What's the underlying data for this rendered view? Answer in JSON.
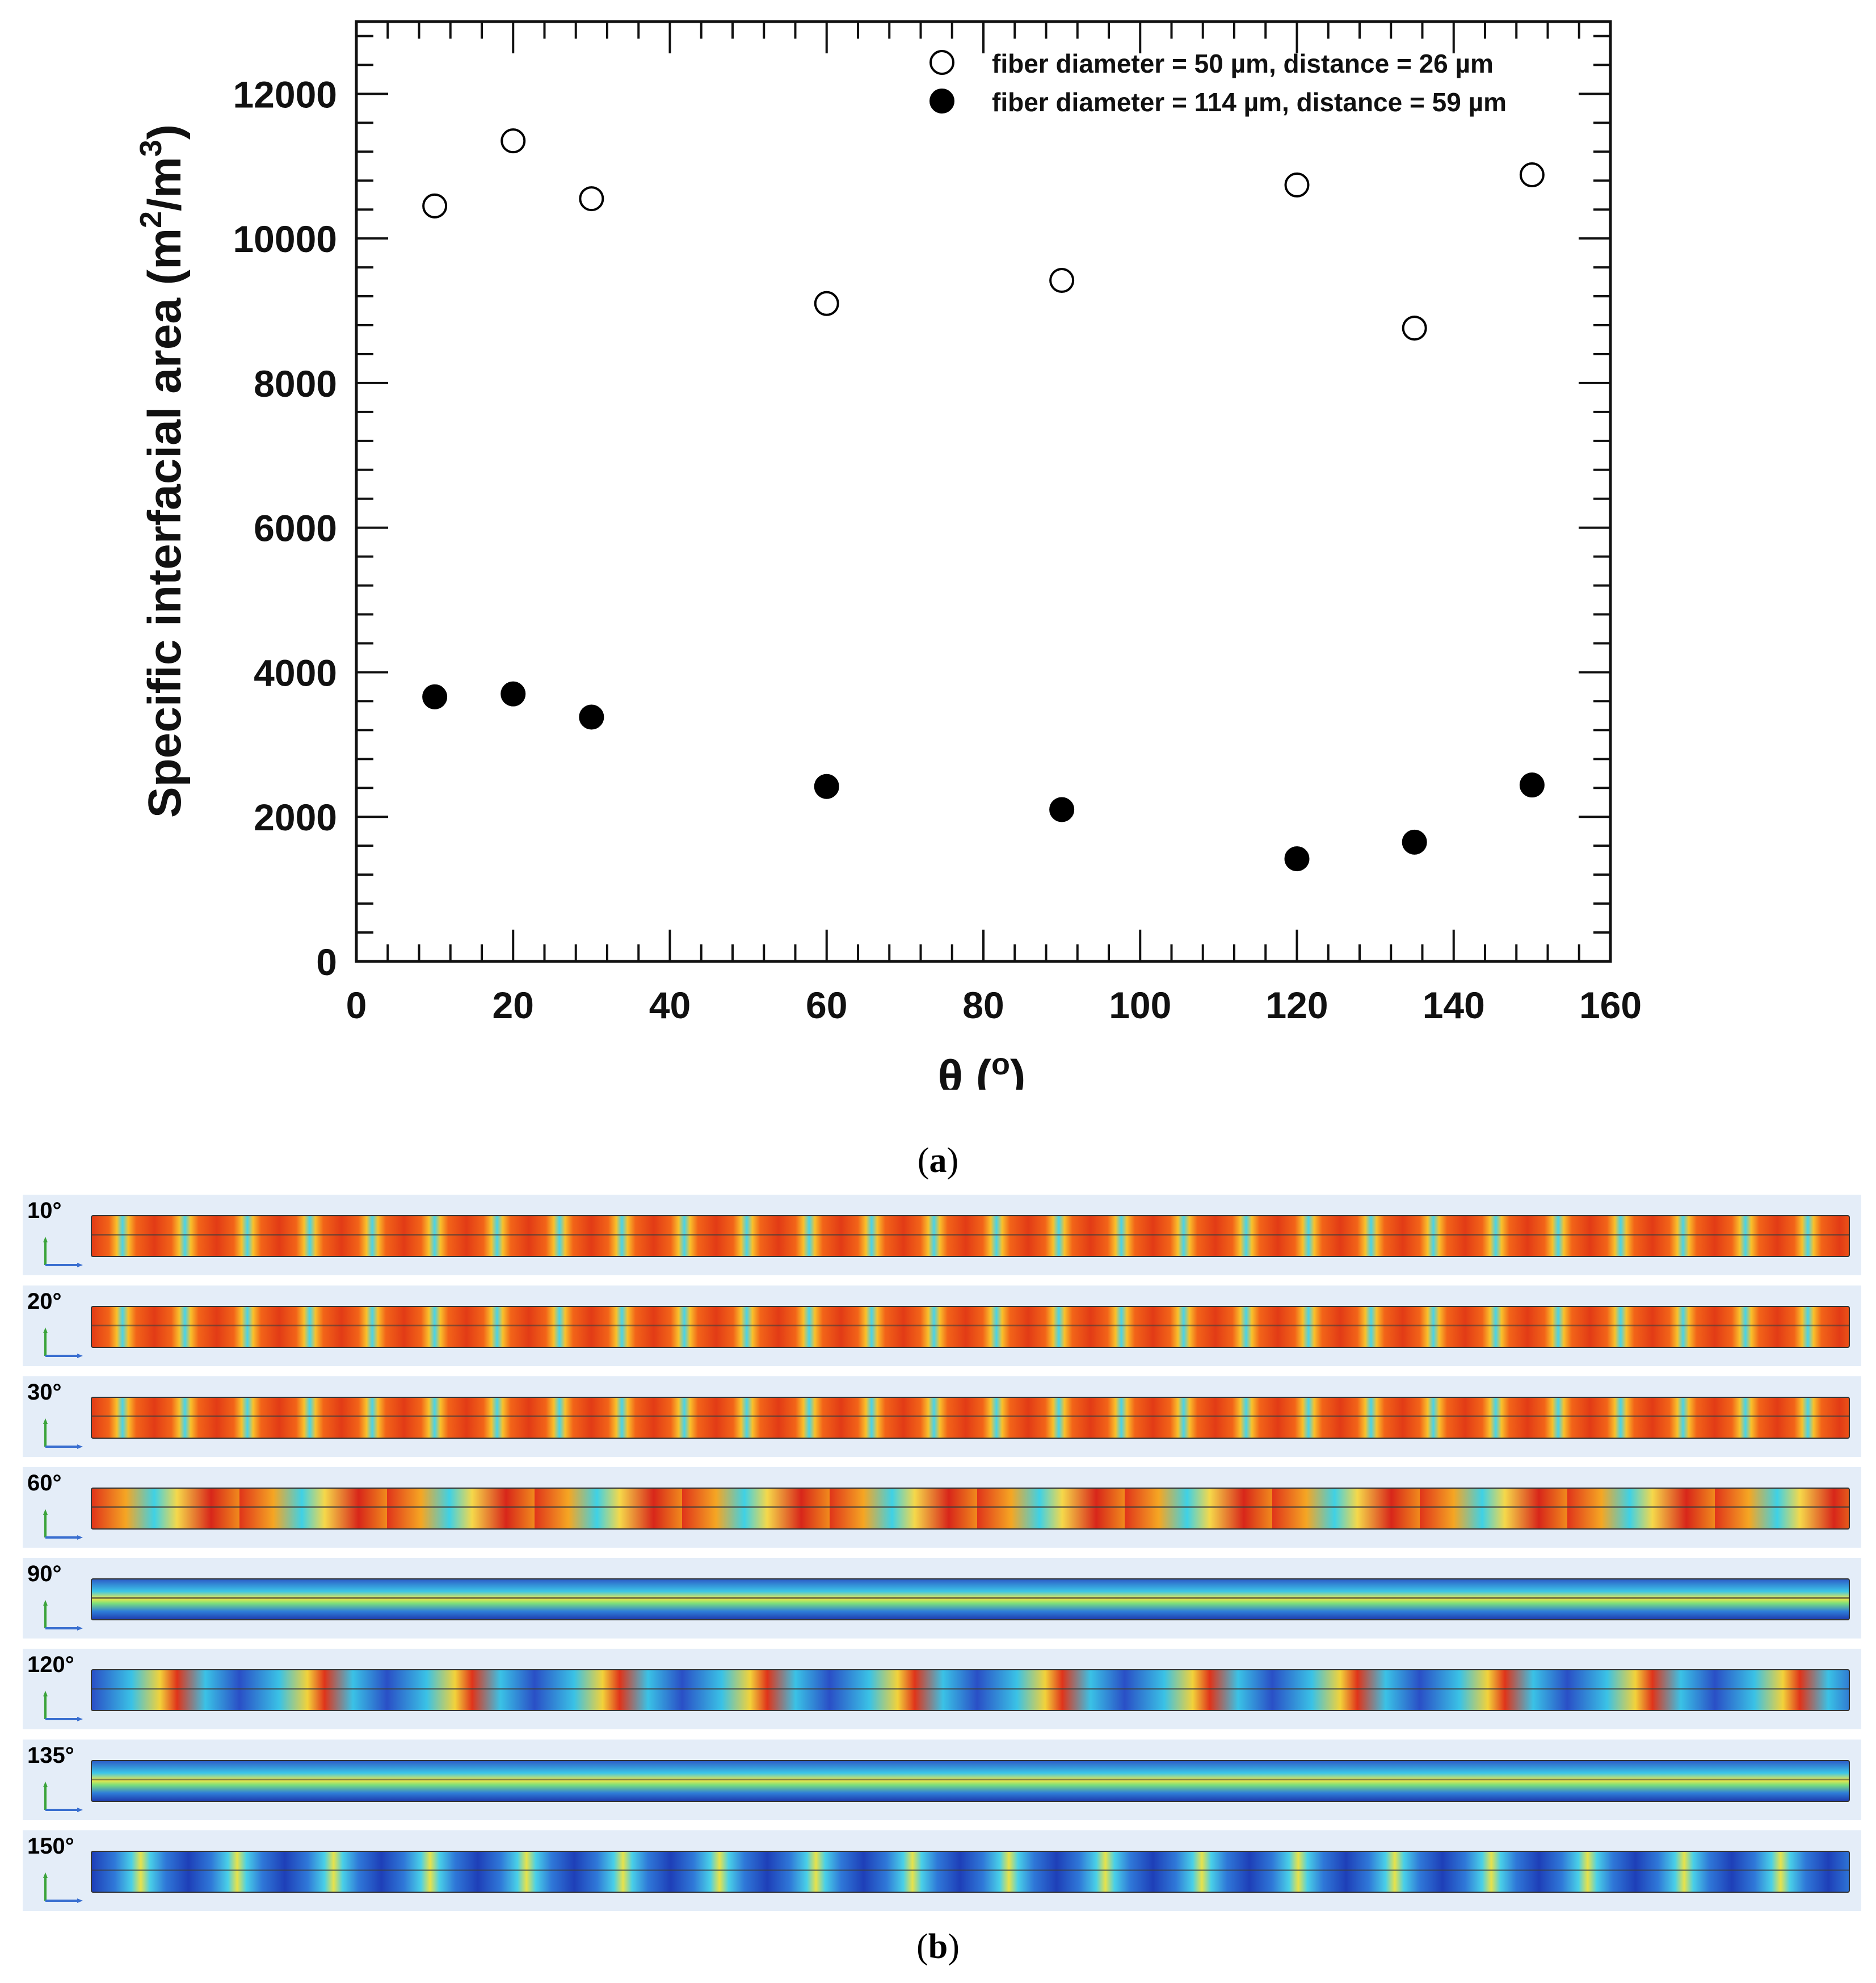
{
  "chart_data": {
    "type": "scatter",
    "ylabel": "Specific interfacial area (m",
    "ylabel_sup1": "2",
    "ylabel_mid": "/m",
    "ylabel_sup2": "3",
    "ylabel_end": ")",
    "xlabel": "θ (",
    "xlabel_sup": "o",
    "xlabel_end": ")",
    "xlim": [
      0,
      160
    ],
    "ylim": [
      0,
      13000
    ],
    "xticks": [
      0,
      20,
      40,
      60,
      80,
      100,
      120,
      140,
      160
    ],
    "yticks": [
      0,
      2000,
      4000,
      6000,
      8000,
      10000,
      12000
    ],
    "x_minor_step": 4,
    "y_minor_step": 400,
    "series": [
      {
        "name": "fiber diameter = 50 µm, distance = 26 µm",
        "marker": "open-circle",
        "x": [
          10,
          20,
          30,
          60,
          90,
          120,
          135,
          150
        ],
        "y": [
          10450,
          11350,
          10550,
          9100,
          9420,
          10740,
          8760,
          10880
        ]
      },
      {
        "name": "fiber diameter = 114 µm, distance = 59 µm",
        "marker": "filled-circle",
        "x": [
          10,
          20,
          30,
          60,
          90,
          120,
          135,
          150
        ],
        "y": [
          3660,
          3700,
          3380,
          2420,
          2100,
          1420,
          1650,
          2440
        ]
      }
    ],
    "legend_position": "top-right"
  },
  "captions": {
    "a": "a",
    "b": "b"
  },
  "panel_b": {
    "rows": [
      {
        "label": "10°",
        "theme": "hot"
      },
      {
        "label": "20°",
        "theme": "hot"
      },
      {
        "label": "30°",
        "theme": "hot"
      },
      {
        "label": "60°",
        "theme": "mixed-hot"
      },
      {
        "label": "90°",
        "theme": "cool-band"
      },
      {
        "label": "120°",
        "theme": "mixed-cool"
      },
      {
        "label": "135°",
        "theme": "cool-band"
      },
      {
        "label": "150°",
        "theme": "cool"
      }
    ]
  }
}
